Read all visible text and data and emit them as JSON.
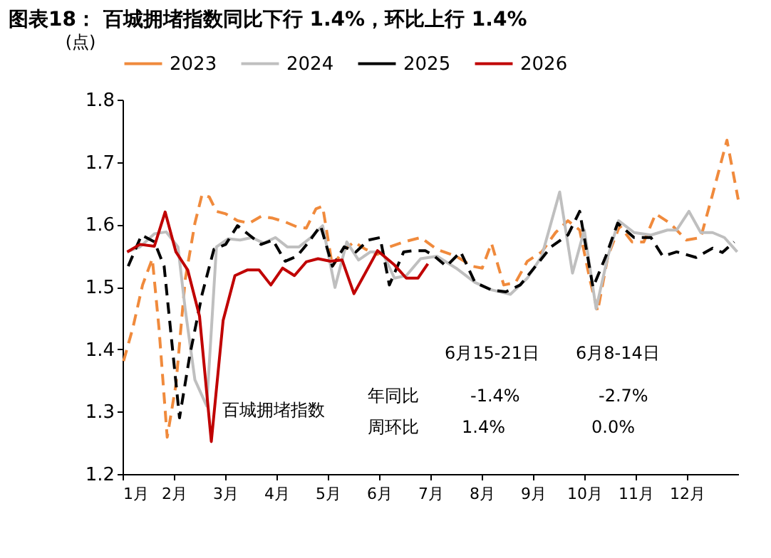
{
  "chart_data": {
    "type": "line",
    "title": "图表18：  百城拥堵指数同比下行 1.4%，环比上行 1.4%",
    "ylabel": "(点)",
    "xlim": [
      1,
      13
    ],
    "xticks": [
      {
        "value": 1,
        "label": "1月"
      },
      {
        "value": 2,
        "label": "2月"
      },
      {
        "value": 3,
        "label": "3月"
      },
      {
        "value": 4,
        "label": "4月"
      },
      {
        "value": 5,
        "label": "5月"
      },
      {
        "value": 6,
        "label": "6月"
      },
      {
        "value": 7,
        "label": "7月"
      },
      {
        "value": 8,
        "label": "8月"
      },
      {
        "value": 9,
        "label": "9月"
      },
      {
        "value": 10,
        "label": "10月"
      },
      {
        "value": 11,
        "label": "11月"
      },
      {
        "value": 12,
        "label": "12月"
      }
    ],
    "ylim": [
      1.2,
      1.8
    ],
    "yticks": [
      1.2,
      1.3,
      1.4,
      1.5,
      1.6,
      1.7,
      1.8
    ],
    "grid": false,
    "legend": "top",
    "series": [
      {
        "name": "2023",
        "color": "#f08a3c",
        "line_style": "dashed",
        "x": [
          1.02,
          1.2,
          1.39,
          1.58,
          1.71,
          1.87,
          2.04,
          2.22,
          2.41,
          2.55,
          2.69,
          2.83,
          3.01,
          3.24,
          3.47,
          3.7,
          3.93,
          4.17,
          4.4,
          4.58,
          4.77,
          4.9,
          5.09,
          5.28,
          5.51,
          5.74,
          5.97,
          6.2,
          6.48,
          6.81,
          7.13,
          7.5,
          7.82,
          8.01,
          8.19,
          8.43,
          8.66,
          8.89,
          9.17,
          9.44,
          9.68,
          9.91,
          10.11,
          10.26,
          10.46,
          10.69,
          10.93,
          11.16,
          11.39,
          11.67,
          11.99,
          12.27,
          12.5,
          12.78,
          13.0
        ],
        "values": [
          1.381,
          1.434,
          1.503,
          1.545,
          1.434,
          1.259,
          1.343,
          1.511,
          1.602,
          1.648,
          1.644,
          1.621,
          1.617,
          1.606,
          1.602,
          1.613,
          1.61,
          1.604,
          1.596,
          1.594,
          1.625,
          1.629,
          1.533,
          1.556,
          1.572,
          1.56,
          1.552,
          1.564,
          1.572,
          1.579,
          1.56,
          1.549,
          1.533,
          1.53,
          1.57,
          1.503,
          1.507,
          1.541,
          1.556,
          1.587,
          1.606,
          1.591,
          1.511,
          1.461,
          1.549,
          1.598,
          1.572,
          1.572,
          1.617,
          1.602,
          1.575,
          1.579,
          1.648,
          1.735,
          1.64
        ]
      },
      {
        "name": "2024",
        "color": "#bfbfbf",
        "line_style": "solid",
        "x": [
          1.09,
          1.34,
          1.62,
          1.85,
          2.08,
          2.22,
          2.41,
          2.64,
          2.83,
          3.06,
          3.29,
          3.52,
          3.75,
          3.98,
          4.21,
          4.44,
          4.67,
          4.9,
          5.14,
          5.37,
          5.6,
          5.83,
          6.06,
          6.3,
          6.53,
          6.81,
          7.13,
          7.5,
          7.87,
          8.2,
          8.56,
          8.89,
          9.17,
          9.52,
          9.77,
          10.0,
          10.23,
          10.46,
          10.67,
          10.97,
          11.3,
          11.62,
          11.8,
          12.04,
          12.27,
          12.5,
          12.73,
          12.98
        ],
        "values": [
          1.556,
          1.564,
          1.585,
          1.588,
          1.564,
          1.465,
          1.351,
          1.309,
          1.564,
          1.577,
          1.575,
          1.579,
          1.57,
          1.579,
          1.564,
          1.564,
          1.579,
          1.598,
          1.499,
          1.572,
          1.543,
          1.556,
          1.556,
          1.514,
          1.518,
          1.545,
          1.549,
          1.53,
          1.507,
          1.495,
          1.488,
          1.514,
          1.549,
          1.652,
          1.522,
          1.591,
          1.465,
          1.549,
          1.606,
          1.587,
          1.583,
          1.591,
          1.591,
          1.621,
          1.587,
          1.587,
          1.579,
          1.556
        ]
      },
      {
        "name": "2025",
        "color": "#000000",
        "line_style": "dashed",
        "x": [
          1.11,
          1.37,
          1.62,
          1.81,
          2.11,
          2.31,
          2.55,
          2.78,
          3.01,
          3.24,
          3.47,
          3.7,
          3.93,
          4.17,
          4.4,
          4.63,
          4.86,
          5.09,
          5.32,
          5.55,
          5.79,
          6.02,
          6.2,
          6.48,
          6.67,
          6.9,
          7.08,
          7.31,
          7.59,
          7.87,
          8.19,
          8.47,
          8.75,
          9.07,
          9.35,
          9.68,
          9.91,
          10.17,
          10.42,
          10.65,
          10.97,
          11.3,
          11.53,
          11.8,
          12.18,
          12.5,
          12.69,
          12.92
        ],
        "values": [
          1.533,
          1.583,
          1.572,
          1.533,
          1.29,
          1.39,
          1.488,
          1.56,
          1.568,
          1.598,
          1.583,
          1.568,
          1.575,
          1.541,
          1.549,
          1.572,
          1.598,
          1.533,
          1.564,
          1.556,
          1.575,
          1.579,
          1.503,
          1.556,
          1.558,
          1.558,
          1.549,
          1.533,
          1.556,
          1.507,
          1.495,
          1.492,
          1.503,
          1.535,
          1.564,
          1.583,
          1.621,
          1.499,
          1.549,
          1.602,
          1.579,
          1.579,
          1.549,
          1.556,
          1.547,
          1.562,
          1.555,
          1.572
        ]
      },
      {
        "name": "2026",
        "color": "#c00000",
        "line_style": "solid",
        "x": [
          1.09,
          1.34,
          1.62,
          1.83,
          2.04,
          2.27,
          2.5,
          2.73,
          2.96,
          3.19,
          3.43,
          3.66,
          3.89,
          4.12,
          4.35,
          4.58,
          4.81,
          5.05,
          5.28,
          5.51,
          5.97,
          6.3,
          6.53,
          6.76,
          6.95
        ],
        "values": [
          1.556,
          1.568,
          1.565,
          1.62,
          1.556,
          1.527,
          1.453,
          1.252,
          1.446,
          1.518,
          1.527,
          1.527,
          1.503,
          1.53,
          1.518,
          1.54,
          1.545,
          1.541,
          1.543,
          1.489,
          1.558,
          1.535,
          1.514,
          1.514,
          1.537
        ]
      }
    ],
    "annotations": [
      "百城拥堵指数",
      "6月15-21日",
      "6月8-14日",
      "年同比",
      "-1.4%",
      "-2.7%",
      "周环比",
      "1.4%",
      "0.0%"
    ]
  }
}
